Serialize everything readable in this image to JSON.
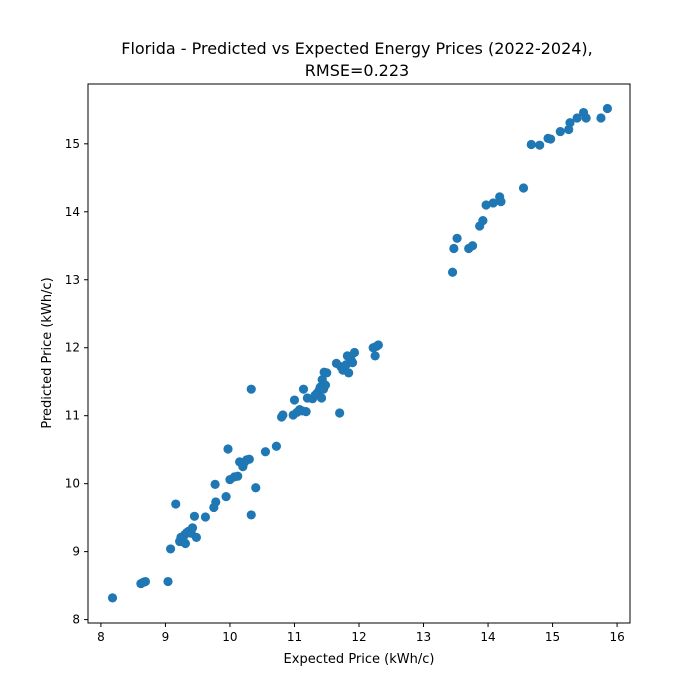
{
  "chart_data": {
    "type": "scatter",
    "title": "Florida - Predicted vs Expected Energy Prices (2022-2024),",
    "subtitle": "RMSE=0.223",
    "xlabel": "Expected Price (kWh/c)",
    "ylabel": "Predicted Price (kWh/c)",
    "xlim": [
      7.8,
      16.2
    ],
    "ylim": [
      7.95,
      15.88
    ],
    "xticks": [
      "8",
      "9",
      "10",
      "11",
      "12",
      "13",
      "14",
      "15",
      "16"
    ],
    "yticks": [
      "8",
      "9",
      "10",
      "11",
      "12",
      "13",
      "14",
      "15"
    ],
    "grid": false,
    "marker_color": "#1f77b4",
    "points": [
      [
        8.18,
        8.32
      ],
      [
        8.62,
        8.53
      ],
      [
        8.66,
        8.55
      ],
      [
        8.69,
        8.56
      ],
      [
        9.04,
        8.56
      ],
      [
        9.08,
        9.04
      ],
      [
        9.16,
        9.7
      ],
      [
        9.22,
        9.15
      ],
      [
        9.24,
        9.21
      ],
      [
        9.27,
        9.19
      ],
      [
        9.3,
        9.25
      ],
      [
        9.31,
        9.12
      ],
      [
        9.33,
        9.28
      ],
      [
        9.36,
        9.3
      ],
      [
        9.4,
        9.27
      ],
      [
        9.42,
        9.35
      ],
      [
        9.45,
        9.52
      ],
      [
        9.48,
        9.21
      ],
      [
        9.62,
        9.51
      ],
      [
        9.75,
        9.65
      ],
      [
        9.77,
        9.99
      ],
      [
        9.78,
        9.73
      ],
      [
        9.94,
        9.81
      ],
      [
        9.97,
        10.51
      ],
      [
        10.0,
        10.06
      ],
      [
        10.07,
        10.1
      ],
      [
        10.12,
        10.11
      ],
      [
        10.15,
        10.32
      ],
      [
        10.2,
        10.25
      ],
      [
        10.23,
        10.32
      ],
      [
        10.26,
        10.35
      ],
      [
        10.3,
        10.36
      ],
      [
        10.33,
        11.39
      ],
      [
        10.33,
        9.54
      ],
      [
        10.4,
        9.94
      ],
      [
        10.55,
        10.47
      ],
      [
        10.72,
        10.55
      ],
      [
        10.8,
        10.98
      ],
      [
        10.82,
        11.01
      ],
      [
        10.98,
        11.01
      ],
      [
        11.0,
        11.23
      ],
      [
        11.04,
        11.05
      ],
      [
        11.08,
        11.09
      ],
      [
        11.12,
        11.07
      ],
      [
        11.14,
        11.39
      ],
      [
        11.18,
        11.06
      ],
      [
        11.2,
        11.26
      ],
      [
        11.28,
        11.25
      ],
      [
        11.32,
        11.3
      ],
      [
        11.35,
        11.33
      ],
      [
        11.38,
        11.37
      ],
      [
        11.4,
        11.42
      ],
      [
        11.42,
        11.26
      ],
      [
        11.43,
        11.53
      ],
      [
        11.45,
        11.39
      ],
      [
        11.46,
        11.64
      ],
      [
        11.48,
        11.45
      ],
      [
        11.5,
        11.63
      ],
      [
        11.65,
        11.77
      ],
      [
        11.7,
        11.04
      ],
      [
        11.72,
        11.72
      ],
      [
        11.75,
        11.67
      ],
      [
        11.8,
        11.75
      ],
      [
        11.82,
        11.88
      ],
      [
        11.84,
        11.63
      ],
      [
        11.88,
        11.82
      ],
      [
        11.9,
        11.78
      ],
      [
        11.93,
        11.93
      ],
      [
        12.22,
        12.0
      ],
      [
        12.25,
        11.88
      ],
      [
        12.27,
        12.02
      ],
      [
        12.3,
        12.04
      ],
      [
        13.45,
        13.11
      ],
      [
        13.47,
        13.46
      ],
      [
        13.52,
        13.61
      ],
      [
        13.7,
        13.46
      ],
      [
        13.76,
        13.5
      ],
      [
        13.87,
        13.79
      ],
      [
        13.92,
        13.87
      ],
      [
        13.97,
        14.1
      ],
      [
        14.08,
        14.13
      ],
      [
        14.18,
        14.22
      ],
      [
        14.2,
        14.15
      ],
      [
        14.55,
        14.35
      ],
      [
        14.67,
        14.99
      ],
      [
        14.8,
        14.98
      ],
      [
        14.93,
        15.08
      ],
      [
        14.97,
        15.07
      ],
      [
        15.12,
        15.18
      ],
      [
        15.25,
        15.21
      ],
      [
        15.27,
        15.31
      ],
      [
        15.38,
        15.38
      ],
      [
        15.48,
        15.46
      ],
      [
        15.52,
        15.38
      ],
      [
        15.75,
        15.38
      ],
      [
        15.85,
        15.52
      ]
    ]
  }
}
